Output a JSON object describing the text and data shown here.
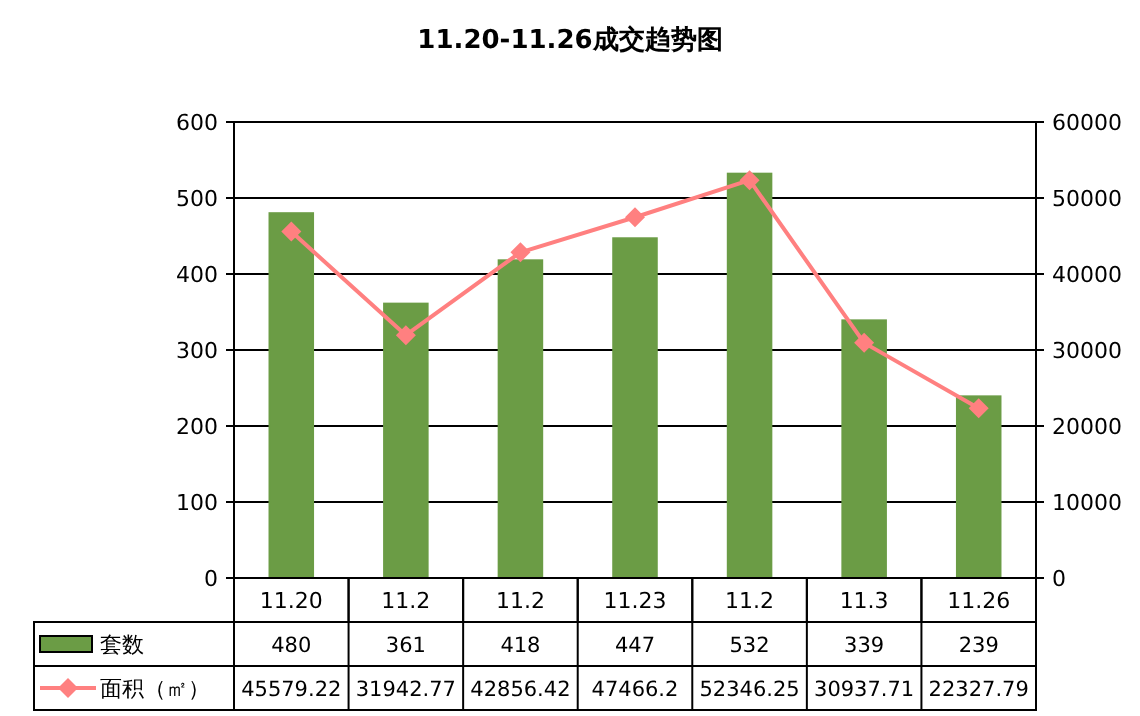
{
  "chart_data": {
    "type": "bar",
    "title": "11.20-11.26成交趋势图",
    "categories": [
      "11.20",
      "11.2",
      "11.2",
      "11.23",
      "11.2",
      "11.3",
      "11.26"
    ],
    "series": [
      {
        "name": "套数",
        "color": "#6b9c45",
        "values": [
          480,
          361,
          418,
          447,
          532,
          339,
          239
        ]
      },
      {
        "name": "面积（㎡）",
        "type": "line",
        "axis": "y2",
        "color": "#ff8080",
        "marker": "diamond",
        "values": [
          45579.22,
          31942.77,
          42856.42,
          47466.2,
          52346.25,
          30937.71,
          22327.79
        ]
      }
    ],
    "ylim": [
      0,
      600
    ],
    "yticks": [
      0,
      100,
      200,
      300,
      400,
      500,
      600
    ],
    "y2lim": [
      0,
      60000
    ],
    "y2ticks": [
      0,
      10000,
      20000,
      30000,
      40000,
      50000,
      60000
    ],
    "grid": "y",
    "legend": "bottom",
    "data_labels": true
  }
}
